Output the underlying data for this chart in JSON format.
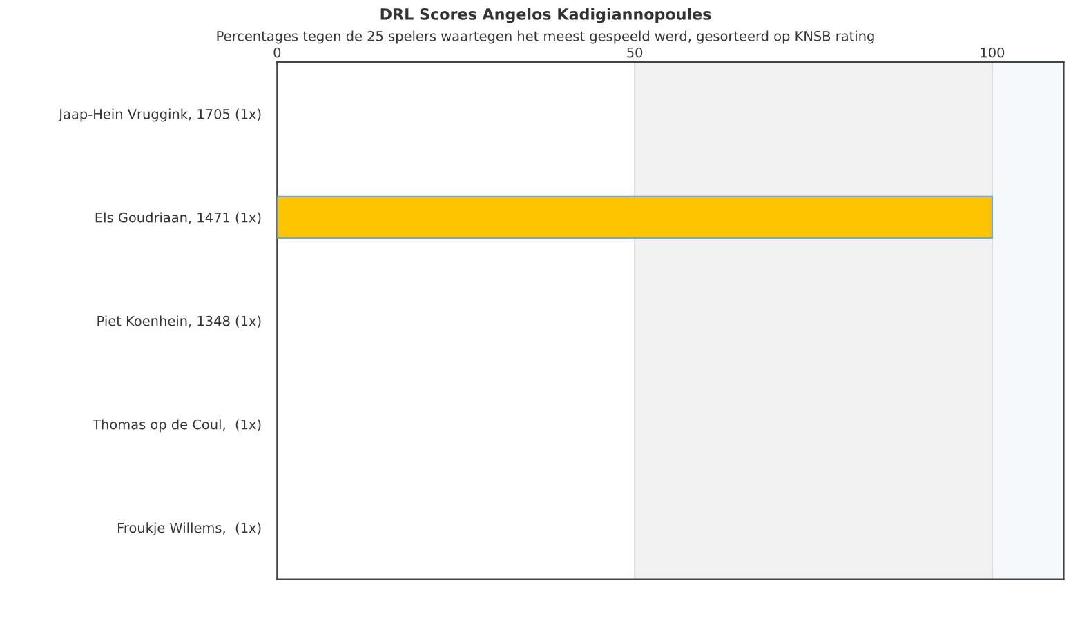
{
  "chart_data": {
    "type": "bar",
    "orientation": "horizontal",
    "title": "DRL Scores Angelos Kadigiannopoules",
    "subtitle": "Percentages tegen de 25 spelers waartegen het meest gespeeld werd, gesorteerd op KNSB rating",
    "categories": [
      "Jaap-Hein Vruggink, 1705 (1x)",
      "Els Goudriaan, 1471 (1x)",
      "Piet Koenhein, 1348 (1x)",
      "Thomas op de Coul,  (1x)",
      "Froukje Willems,  (1x)"
    ],
    "values": [
      0,
      100,
      0,
      0,
      0
    ],
    "color": "#ffc400",
    "xlim": [
      0,
      110
    ],
    "xticks": [
      0,
      50,
      100
    ],
    "grid": "x",
    "bands": [
      {
        "axis": "x",
        "from": 50,
        "to": 100,
        "color": "#f2f2f2"
      },
      {
        "axis": "x",
        "from": 100,
        "to": 110,
        "color": "#f5f9fc"
      }
    ]
  }
}
